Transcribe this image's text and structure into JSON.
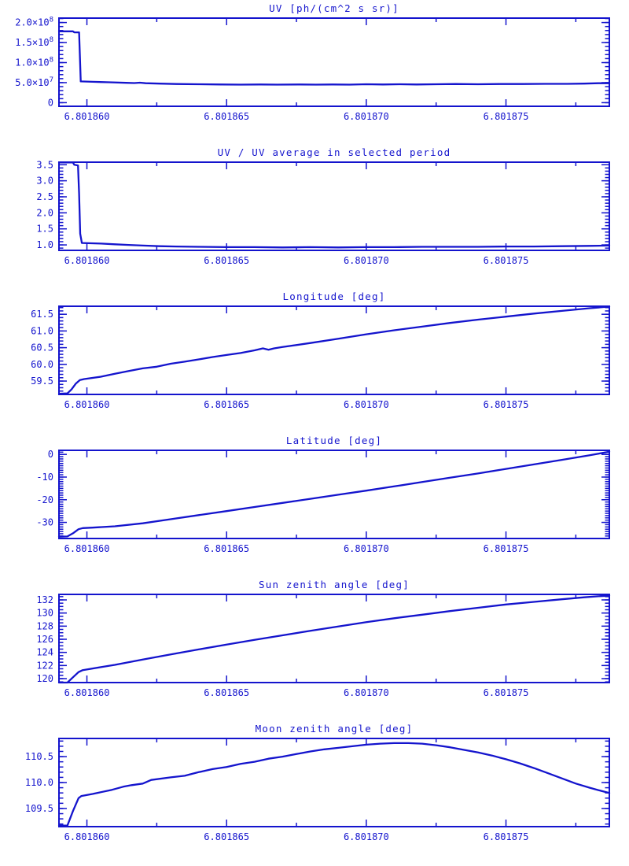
{
  "page": {
    "background": "#ffffff",
    "accent": "#1414cd",
    "description": "Six stacked IDL-style time-series plots of lunar UV instrument data"
  },
  "x_axis": {
    "note": "shared x axis for all six panels; actual x value = base + u * 1e-6",
    "base": 6.801859,
    "lim_u": [
      0,
      19.7
    ],
    "major": [
      {
        "u": 1.0,
        "label": "6.801860"
      },
      {
        "u": 6.0,
        "label": "6.801865"
      },
      {
        "u": 11.0,
        "label": "6.801870"
      },
      {
        "u": 16.0,
        "label": "6.801875"
      }
    ],
    "minor_u": [
      3.5,
      8.5,
      13.5,
      18.5
    ]
  },
  "chart_data": [
    {
      "type": "line",
      "name": "uv-flux",
      "title": "UV [ph/(cm^2 s sr)]",
      "ylabel": "",
      "y_unit": "1e7 ph/(cm^2 s sr)",
      "ylim": [
        -0.9,
        21.1
      ],
      "y_minor_step": 1,
      "y_major": [
        {
          "v": 0,
          "label": "0"
        },
        {
          "v": 5,
          "label": "5.0×10^7"
        },
        {
          "v": 10,
          "label": "1.0×10^8"
        },
        {
          "v": 15,
          "label": "1.5×10^8"
        },
        {
          "v": 20,
          "label": "2.0×10^8"
        }
      ],
      "series": [
        {
          "name": "UV radiance",
          "u": [
            0,
            0.5,
            0.55,
            0.72,
            0.78,
            1.2,
            1.8,
            2.4,
            2.7,
            2.9,
            3.1,
            3.6,
            4.2,
            5,
            5.8,
            6.5,
            7.2,
            7.8,
            8.6,
            9.2,
            9.8,
            10.4,
            11,
            11.6,
            12.2,
            12.8,
            13.5,
            14.2,
            15,
            15.8,
            16.6,
            17.4,
            18.2,
            18.8,
            19.3,
            19.7
          ],
          "v": [
            17.8,
            17.8,
            17.55,
            17.55,
            5.3,
            5.2,
            5.1,
            4.95,
            4.9,
            5.0,
            4.85,
            4.75,
            4.65,
            4.6,
            4.55,
            4.5,
            4.55,
            4.5,
            4.55,
            4.5,
            4.55,
            4.5,
            4.6,
            4.55,
            4.6,
            4.55,
            4.6,
            4.65,
            4.6,
            4.65,
            4.65,
            4.7,
            4.7,
            4.75,
            4.85,
            4.85
          ]
        }
      ]
    },
    {
      "type": "line",
      "name": "uv-ratio",
      "title": "UV / UV average in selected period",
      "ylabel": "",
      "y_unit": "ratio",
      "ylim": [
        0.83,
        3.58
      ],
      "y_minor_step": 0.1,
      "y_major": [
        {
          "v": 1.0,
          "label": "1.0"
        },
        {
          "v": 1.5,
          "label": "1.5"
        },
        {
          "v": 2.0,
          "label": "2.0"
        },
        {
          "v": 2.5,
          "label": "2.5"
        },
        {
          "v": 3.0,
          "label": "3.0"
        },
        {
          "v": 3.5,
          "label": "3.5"
        }
      ],
      "series": [
        {
          "name": "UV / UV average",
          "u": [
            0,
            0.5,
            0.55,
            0.68,
            0.72,
            0.76,
            0.82,
            1.5,
            2,
            2.5,
            3,
            3.6,
            4.2,
            5,
            6,
            7,
            8,
            9,
            10,
            11,
            12,
            13,
            14,
            15,
            16,
            17,
            18,
            19,
            19.7
          ],
          "v": [
            3.57,
            3.57,
            3.5,
            3.48,
            2.6,
            1.35,
            1.06,
            1.04,
            1.02,
            1.0,
            0.98,
            0.96,
            0.95,
            0.94,
            0.93,
            0.93,
            0.92,
            0.93,
            0.92,
            0.93,
            0.93,
            0.94,
            0.94,
            0.94,
            0.95,
            0.95,
            0.96,
            0.97,
            0.98
          ]
        }
      ]
    },
    {
      "type": "line",
      "name": "longitude",
      "title": "Longitude [deg]",
      "ylabel": "",
      "y_unit": "deg",
      "ylim": [
        59.1,
        61.74
      ],
      "y_minor_step": 0.1,
      "y_major": [
        {
          "v": 59.5,
          "label": "59.5"
        },
        {
          "v": 60.0,
          "label": "60.0"
        },
        {
          "v": 60.5,
          "label": "60.5"
        },
        {
          "v": 61.0,
          "label": "61.0"
        },
        {
          "v": 61.5,
          "label": "61.5"
        }
      ],
      "series": [
        {
          "name": "Longitude",
          "u": [
            0,
            0.3,
            0.45,
            0.6,
            0.75,
            0.9,
            1.5,
            2,
            2.5,
            3,
            3.5,
            4,
            4.5,
            5,
            5.5,
            6,
            6.5,
            7,
            7.3,
            7.5,
            7.7,
            8,
            9,
            10,
            11,
            12,
            13,
            14,
            15,
            16,
            17,
            18,
            19,
            19.7
          ],
          "v": [
            59.12,
            59.13,
            59.25,
            59.42,
            59.53,
            59.56,
            59.63,
            59.72,
            59.8,
            59.88,
            59.93,
            60.02,
            60.08,
            60.15,
            60.22,
            60.28,
            60.34,
            60.42,
            60.48,
            60.44,
            60.48,
            60.52,
            60.64,
            60.77,
            60.9,
            61.02,
            61.13,
            61.24,
            61.34,
            61.43,
            61.52,
            61.6,
            61.68,
            61.73
          ]
        }
      ]
    },
    {
      "type": "line",
      "name": "latitude",
      "title": "Latitude [deg]",
      "ylabel": "",
      "y_unit": "deg",
      "ylim": [
        -37.1,
        1.8
      ],
      "y_minor_step": 1,
      "y_major": [
        {
          "v": 0,
          "label": "0"
        },
        {
          "v": -10,
          "label": "-10"
        },
        {
          "v": -20,
          "label": "-20"
        },
        {
          "v": -30,
          "label": "-30"
        }
      ],
      "series": [
        {
          "name": "Latitude",
          "u": [
            0,
            0.3,
            0.5,
            0.7,
            0.85,
            1.2,
            2,
            3,
            4,
            5,
            6,
            7,
            8,
            9,
            10,
            11,
            12,
            13,
            14,
            15,
            16,
            17,
            18,
            19,
            19.7
          ],
          "v": [
            -36.3,
            -36.2,
            -34.8,
            -33.0,
            -32.5,
            -32.3,
            -31.7,
            -30.4,
            -28.6,
            -26.8,
            -25.0,
            -23.2,
            -21.4,
            -19.6,
            -17.8,
            -16.0,
            -14.1,
            -12.2,
            -10.3,
            -8.4,
            -6.4,
            -4.4,
            -2.4,
            -0.4,
            1.2
          ]
        }
      ]
    },
    {
      "type": "line",
      "name": "sun-zenith",
      "title": "Sun zenith angle [deg]",
      "ylabel": "",
      "y_unit": "deg",
      "ylim": [
        119.4,
        132.84
      ],
      "y_minor_step": 0.5,
      "y_major": [
        {
          "v": 120,
          "label": "120"
        },
        {
          "v": 122,
          "label": "122"
        },
        {
          "v": 124,
          "label": "124"
        },
        {
          "v": 126,
          "label": "126"
        },
        {
          "v": 128,
          "label": "128"
        },
        {
          "v": 130,
          "label": "130"
        },
        {
          "v": 132,
          "label": "132"
        }
      ],
      "series": [
        {
          "name": "Sun zenith angle",
          "u": [
            0,
            0.3,
            0.5,
            0.7,
            0.85,
            1.5,
            2,
            3,
            4,
            5,
            6,
            7,
            8,
            9,
            10,
            11,
            12,
            13,
            14,
            15,
            16,
            17,
            18,
            18.8,
            19.3,
            19.7
          ],
          "v": [
            119.4,
            119.4,
            120.2,
            121.0,
            121.3,
            121.75,
            122.1,
            122.9,
            123.7,
            124.45,
            125.2,
            125.9,
            126.6,
            127.3,
            127.95,
            128.6,
            129.2,
            129.75,
            130.3,
            130.8,
            131.3,
            131.7,
            132.1,
            132.4,
            132.55,
            132.65
          ]
        }
      ]
    },
    {
      "type": "line",
      "name": "moon-zenith",
      "title": "Moon zenith angle [deg]",
      "ylabel": "",
      "y_unit": "deg",
      "ylim": [
        109.15,
        110.85
      ],
      "y_minor_step": 0.1,
      "y_major": [
        {
          "v": 109.5,
          "label": "109.5"
        },
        {
          "v": 110.0,
          "label": "110.0"
        },
        {
          "v": 110.5,
          "label": "110.5"
        }
      ],
      "series": [
        {
          "name": "Moon zenith angle",
          "u": [
            0,
            0.3,
            0.5,
            0.7,
            0.8,
            1.2,
            1.9,
            2.3,
            2.6,
            3,
            3.3,
            4,
            4.5,
            5,
            5.5,
            6,
            6.5,
            7,
            7.5,
            8,
            8.5,
            9,
            9.5,
            10,
            10.5,
            11,
            11.5,
            12,
            12.5,
            13,
            13.5,
            14,
            14.5,
            15,
            15.5,
            16,
            16.5,
            17,
            17.5,
            18,
            18.5,
            19,
            19.4,
            19.7
          ],
          "v": [
            109.17,
            109.17,
            109.45,
            109.7,
            109.74,
            109.78,
            109.86,
            109.92,
            109.95,
            109.98,
            110.05,
            110.1,
            110.13,
            110.2,
            110.26,
            110.3,
            110.36,
            110.4,
            110.46,
            110.5,
            110.55,
            110.6,
            110.64,
            110.67,
            110.7,
            110.73,
            110.75,
            110.76,
            110.76,
            110.75,
            110.72,
            110.68,
            110.63,
            110.58,
            110.52,
            110.45,
            110.37,
            110.28,
            110.18,
            110.08,
            109.98,
            109.9,
            109.84,
            109.8
          ]
        }
      ]
    }
  ]
}
